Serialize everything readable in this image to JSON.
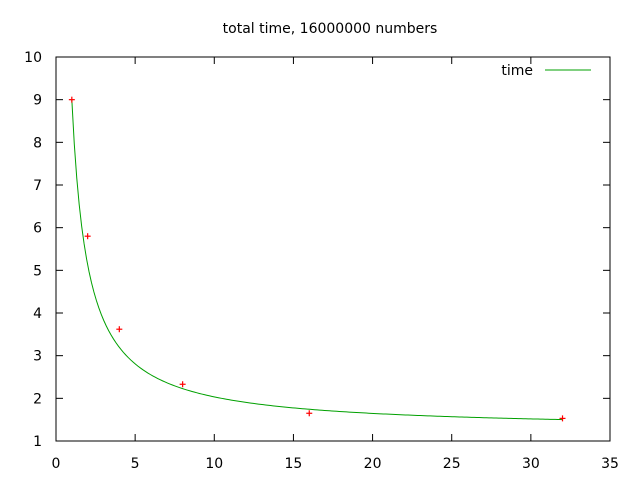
{
  "chart_data": {
    "type": "scatter",
    "title": "total time, 16000000 numbers",
    "xlabel": "",
    "ylabel": "",
    "xlim": [
      0,
      35
    ],
    "ylim": [
      1,
      10
    ],
    "x_ticks": [
      0,
      5,
      10,
      15,
      20,
      25,
      30,
      35
    ],
    "y_ticks": [
      1,
      2,
      3,
      4,
      5,
      6,
      7,
      8,
      9,
      10
    ],
    "grid": false,
    "legend_position": "top-right",
    "series": [
      {
        "name": "time",
        "kind": "line",
        "color": "#00a000",
        "model": "a + b/x",
        "a": 1.26,
        "b": 7.74,
        "x_range": [
          1,
          32
        ]
      },
      {
        "kind": "points",
        "color": "#ff0000",
        "marker": "plus",
        "x": [
          1,
          2,
          4,
          8,
          16,
          32
        ],
        "y": [
          9.0,
          5.8,
          3.62,
          2.33,
          1.65,
          1.53
        ]
      }
    ]
  }
}
